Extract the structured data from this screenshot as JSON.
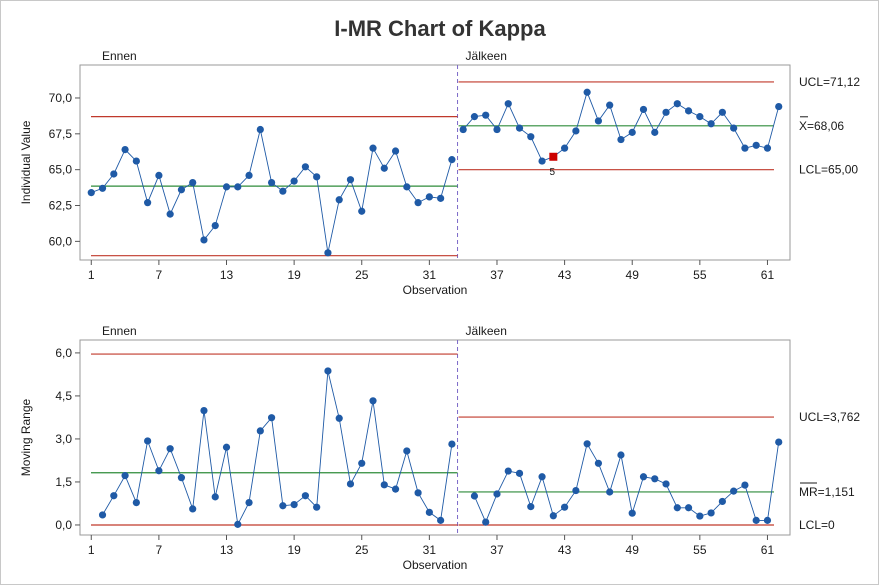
{
  "title": "I-MR Chart of Kappa",
  "colors": {
    "series": "#1f5aa6",
    "control_limit": "#c0392b",
    "center_line": "#2e8b3a",
    "stage_divider": "#7b68c8",
    "flagged_point": "#cc0000"
  },
  "chart_data": [
    {
      "type": "line",
      "name": "individuals",
      "xlabel": "Observation",
      "ylabel": "Individual Value",
      "xlim": [
        0,
        63
      ],
      "ylim": [
        58.7,
        72.3
      ],
      "x_ticks": [
        1,
        7,
        13,
        19,
        25,
        31,
        37,
        43,
        49,
        55,
        61
      ],
      "y_ticks": [
        60.0,
        62.5,
        65.0,
        67.5,
        70.0
      ],
      "y_tick_labels": [
        "60,0",
        "62,5",
        "65,0",
        "67,5",
        "70,0"
      ],
      "stage_labels": [
        "Ennen",
        "Jälkeen"
      ],
      "stage_split": 33.5,
      "stages": [
        {
          "from": 1,
          "to": 33,
          "ucl": 68.7,
          "center": 63.85,
          "lcl": 59.0
        },
        {
          "from": 34,
          "to": 62,
          "ucl": 71.12,
          "center": 68.06,
          "lcl": 65.0
        }
      ],
      "limit_labels": {
        "ucl": "UCL=71,12",
        "center": "X=68,06",
        "lcl": "LCL=65,00"
      },
      "values": [
        63.4,
        63.7,
        64.7,
        66.4,
        65.6,
        62.7,
        64.6,
        61.9,
        63.6,
        64.1,
        60.1,
        61.1,
        63.8,
        63.8,
        64.6,
        67.8,
        64.1,
        63.5,
        64.2,
        65.2,
        64.5,
        59.2,
        62.9,
        64.3,
        62.1,
        66.5,
        65.1,
        66.3,
        63.8,
        62.7,
        63.1,
        63.0,
        65.7,
        67.8,
        68.7,
        68.8,
        67.8,
        69.6,
        67.9,
        67.3,
        65.6,
        65.9,
        66.5,
        67.7,
        70.4,
        68.4,
        69.5,
        67.1,
        67.6,
        69.2,
        67.6,
        69.0,
        69.6,
        69.1,
        68.7,
        68.2,
        69.0,
        67.9,
        66.5,
        66.7,
        66.5,
        69.4
      ],
      "flagged": [
        {
          "index": 42,
          "label": "5"
        }
      ]
    },
    {
      "type": "line",
      "name": "moving-range",
      "xlabel": "Observation",
      "ylabel": "Moving Range",
      "xlim": [
        0,
        63
      ],
      "ylim": [
        -0.35,
        6.45
      ],
      "x_ticks": [
        1,
        7,
        13,
        19,
        25,
        31,
        37,
        43,
        49,
        55,
        61
      ],
      "y_ticks": [
        0.0,
        1.5,
        3.0,
        4.5,
        6.0
      ],
      "y_tick_labels": [
        "0,0",
        "1,5",
        "3,0",
        "4,5",
        "6,0"
      ],
      "stage_labels": [
        "Ennen",
        "Jälkeen"
      ],
      "stage_split": 33.5,
      "stages": [
        {
          "from": 1,
          "to": 33,
          "ucl": 5.96,
          "center": 1.82,
          "lcl": 0.0
        },
        {
          "from": 34,
          "to": 62,
          "ucl": 3.762,
          "center": 1.151,
          "lcl": 0.0
        }
      ],
      "limit_labels": {
        "ucl": "UCL=3,762",
        "center": "MR=1,151",
        "lcl": "LCL=0"
      },
      "x": [
        2,
        3,
        4,
        5,
        6,
        7,
        8,
        9,
        10,
        11,
        12,
        13,
        14,
        15,
        16,
        17,
        18,
        19,
        20,
        21,
        22,
        23,
        24,
        25,
        26,
        27,
        28,
        29,
        30,
        31,
        32,
        33,
        35,
        36,
        37,
        38,
        39,
        40,
        41,
        42,
        43,
        44,
        45,
        46,
        47,
        48,
        49,
        50,
        51,
        52,
        53,
        54,
        55,
        56,
        57,
        58,
        59,
        60,
        61,
        62
      ],
      "values": [
        0.35,
        1.02,
        1.72,
        0.78,
        2.93,
        1.89,
        2.66,
        1.65,
        0.56,
        3.99,
        0.98,
        2.71,
        0.02,
        0.78,
        3.28,
        3.74,
        0.67,
        0.71,
        1.02,
        0.62,
        5.37,
        3.72,
        1.43,
        2.15,
        4.33,
        1.4,
        1.25,
        2.58,
        1.12,
        0.44,
        0.16,
        2.82,
        1.01,
        0.1,
        1.08,
        1.88,
        1.8,
        0.64,
        1.68,
        0.32,
        0.62,
        1.2,
        2.83,
        2.15,
        1.15,
        2.44,
        0.41,
        1.68,
        1.61,
        1.43,
        0.6,
        0.6,
        0.31,
        0.42,
        0.82,
        1.18,
        1.39,
        0.16,
        0.16,
        2.89
      ]
    }
  ]
}
